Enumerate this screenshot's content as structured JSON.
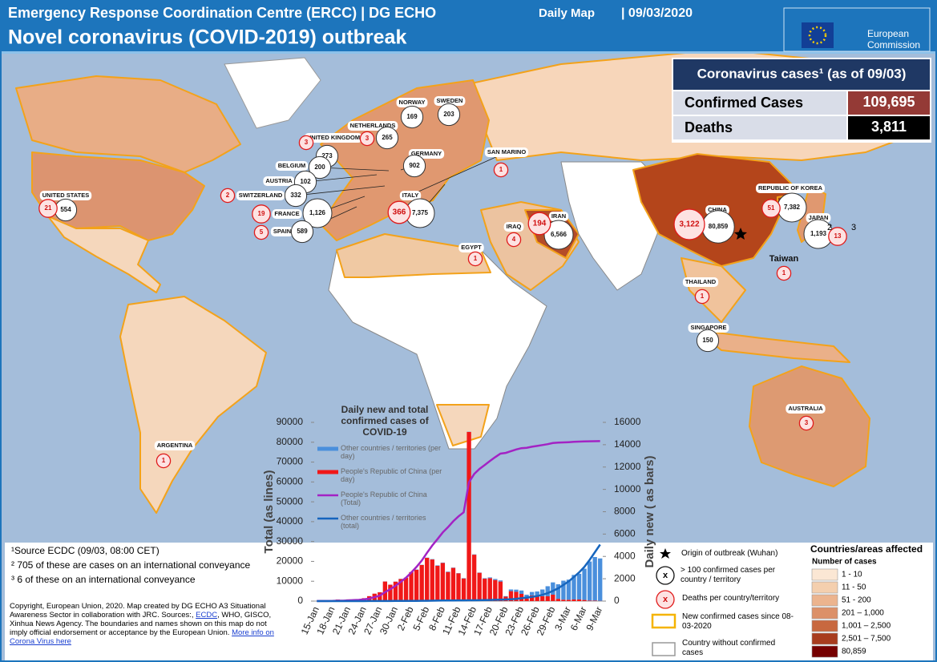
{
  "header": {
    "title": "Emergency Response Coordination Centre (ERCC) | DG ECHO",
    "map_type": "Daily Map",
    "date": "| 09/03/2020",
    "subtitle": "Novel coronavirus (COVID-2019) outbreak",
    "logo_line1": "European",
    "logo_line2": "Commission"
  },
  "summary": {
    "title": "Coronavirus cases¹ (as of 09/03)",
    "rows": [
      [
        "Confirmed Cases",
        "109,695"
      ],
      [
        "Deaths",
        "3,811"
      ]
    ]
  },
  "map": {
    "markers": [
      {
        "label": "UNITED STATES",
        "cases": "554",
        "deaths": "21"
      },
      {
        "label": "ARGENTINA",
        "deaths": "1"
      },
      {
        "label": "NORWAY",
        "cases": "169"
      },
      {
        "label": "SWEDEN",
        "cases": "203"
      },
      {
        "label": "UNITED KINGDOM",
        "cases": "273",
        "deaths": "3"
      },
      {
        "label": "NETHERLANDS",
        "cases": "265",
        "deaths": "3"
      },
      {
        "label": "GERMANY",
        "cases": "902"
      },
      {
        "label": "BELGIUM",
        "cases": "200"
      },
      {
        "label": "AUSTRIA",
        "cases": "102"
      },
      {
        "label": "SWITZERLAND",
        "cases": "332",
        "deaths": "2"
      },
      {
        "label": "FRANCE",
        "cases": "1,126",
        "deaths": "19"
      },
      {
        "label": "SPAIN",
        "cases": "589",
        "deaths": "5"
      },
      {
        "label": "ITALY",
        "cases": "7,375",
        "deaths": "366"
      },
      {
        "label": "SAN MARINO",
        "deaths": "1"
      },
      {
        "label": "EGYPT",
        "deaths": "1"
      },
      {
        "label": "IRAQ",
        "deaths": "4"
      },
      {
        "label": "IRAN",
        "cases": "6,566",
        "deaths": "194"
      },
      {
        "label": "CHINA",
        "cases": "80,859",
        "deaths": "3,122"
      },
      {
        "label": "REPUBLIC OF KOREA",
        "cases": "7,382",
        "deaths": "51"
      },
      {
        "label": "JAPAN",
        "cases": "1,193",
        "deaths": "13"
      },
      {
        "label": "Taiwan",
        "deaths": "1"
      },
      {
        "label": "THAILAND",
        "deaths": "1"
      },
      {
        "label": "SINGAPORE",
        "cases": "150"
      },
      {
        "label": "AUSTRALIA",
        "deaths": "3"
      }
    ],
    "footnote_marks": [
      "2",
      "3"
    ]
  },
  "legend": {
    "symbols": [
      {
        "text": "Origin of outbreak (Wuhan)"
      },
      {
        "symbol": "x",
        "text": "> 100 confirmed cases per country / territory"
      },
      {
        "symbol": "x",
        "text": "Deaths per country/territory"
      },
      {
        "text": "New confirmed cases since 08-03-2020"
      },
      {
        "text": "Country without confirmed cases"
      }
    ],
    "classes_title": "Countries/areas affected",
    "classes_subtitle": "Number of cases",
    "classes": [
      {
        "label": "1 - 10",
        "color": "#fbe7d4"
      },
      {
        "label": "11 - 50",
        "color": "#f4cfae"
      },
      {
        "label": "51 - 200",
        "color": "#ecb48e"
      },
      {
        "label": "201 – 1,000",
        "color": "#dc9068"
      },
      {
        "label": "1,001 – 2,500",
        "color": "#c8683f"
      },
      {
        "label": "2,501 – 7,500",
        "color": "#a83c1e"
      },
      {
        "label": "80,859",
        "color": "#760000"
      }
    ]
  },
  "notes": [
    "¹Source ECDC (09/03, 08:00 CET)",
    "² 705 of these are cases on an international conveyance",
    "³ 6 of these on an international conveyance"
  ],
  "copyright": {
    "text1": "Copyright, European Union, 2020. Map created by DG ECHO A3 Situational Awareness Sector in collaboration with JRC.  Sources:, ",
    "link1": "ECDC",
    "text2": ", WHO, GISCO, Xinhua News Agency. The boundaries and names shown on this map do not imply official endorsement or acceptance  by the European Union. ",
    "link2": "More info on Corona Virus here"
  },
  "chart_data": {
    "type": "combo",
    "title": "Daily new and total confirmed cases of COVID-19",
    "ylabel": "Total (as lines)",
    "y2label": "Daily new ( as bars)",
    "categories": [
      "15-Jan",
      null,
      null,
      "18-Jan",
      null,
      null,
      "21-Jan",
      null,
      null,
      "24-Jan",
      null,
      null,
      "27-Jan",
      null,
      null,
      "30-Jan",
      null,
      null,
      "2-Feb",
      null,
      null,
      "5-Feb",
      null,
      null,
      "8-Feb",
      null,
      null,
      "11-Feb",
      null,
      null,
      "14-Feb",
      null,
      null,
      "17-Feb",
      null,
      null,
      "20-Feb",
      null,
      null,
      "23-Feb",
      null,
      null,
      "26-Feb",
      null,
      null,
      "29-Feb",
      null,
      null,
      "3-Mar",
      null,
      null,
      "6-Mar",
      null,
      null,
      "9-Mar"
    ],
    "series": [
      {
        "name": "Other countries / territories (per day)",
        "type": "bar",
        "axis": "y2",
        "color": "#4a8fdc",
        "values": [
          0,
          0,
          0,
          1,
          1,
          1,
          2,
          2,
          3,
          5,
          6,
          6,
          10,
          8,
          10,
          12,
          15,
          12,
          15,
          20,
          15,
          20,
          30,
          40,
          30,
          35,
          25,
          20,
          30,
          20,
          25,
          20,
          40,
          70,
          90,
          100,
          50,
          150,
          200,
          300,
          350,
          300,
          450,
          600,
          900,
          1100,
          1300,
          1700,
          1800,
          2200,
          2300,
          2800,
          3500,
          3900,
          3800
        ]
      },
      {
        "name": "People's Republic of China (per day)",
        "type": "bar",
        "axis": "y2",
        "color": "#f01818",
        "values": [
          0,
          0,
          4,
          17,
          136,
          19,
          151,
          140,
          97,
          259,
          441,
          665,
          787,
          1753,
          1466,
          1740,
          1980,
          2095,
          2590,
          2812,
          3237,
          3872,
          3727,
          3160,
          3418,
          2607,
          2974,
          2490,
          2028,
          15141,
          4156,
          2538,
          2007,
          2052,
          1890,
          1750,
          394,
          891,
          826,
          647,
          218,
          515,
          410,
          439,
          431,
          574,
          205,
          128,
          120,
          143,
          146,
          102,
          46,
          45,
          20
        ]
      },
      {
        "name": "People's Republic of China (Total)",
        "type": "line",
        "color": "#a323c4",
        "values": [
          41,
          41,
          45,
          62,
          198,
          217,
          368,
          508,
          605,
          864,
          1305,
          1970,
          2757,
          4510,
          5976,
          7716,
          9696,
          11791,
          14381,
          17193,
          20430,
          24302,
          28029,
          31189,
          34607,
          37214,
          40188,
          42678,
          44706,
          59847,
          64003,
          66541,
          68548,
          70600,
          72490,
          74240,
          74634,
          75525,
          76351,
          76998,
          77216,
          77731,
          78141,
          78580,
          79011,
          79585,
          79790,
          79918,
          80038,
          80181,
          80327,
          80429,
          80475,
          80520,
          80540
        ]
      },
      {
        "name": "Other countries / territories (total)",
        "type": "line",
        "color": "#1665bd",
        "values": [
          0,
          0,
          0,
          1,
          2,
          3,
          5,
          7,
          10,
          15,
          21,
          27,
          37,
          45,
          55,
          67,
          82,
          94,
          109,
          129,
          144,
          164,
          194,
          234,
          264,
          299,
          324,
          344,
          374,
          394,
          419,
          439,
          479,
          549,
          639,
          739,
          789,
          939,
          1139,
          1439,
          1789,
          2089,
          2539,
          3139,
          4039,
          5139,
          6439,
          8139,
          9939,
          12139,
          14439,
          17239,
          20739,
          24639,
          28439
        ]
      }
    ],
    "ylim": [
      0,
      90000
    ],
    "yticks": [
      0,
      10000,
      20000,
      30000,
      40000,
      50000,
      60000,
      70000,
      80000,
      90000
    ],
    "y2lim": [
      0,
      16000
    ],
    "y2ticks": [
      0,
      2000,
      4000,
      6000,
      8000,
      10000,
      12000,
      14000,
      16000
    ]
  }
}
